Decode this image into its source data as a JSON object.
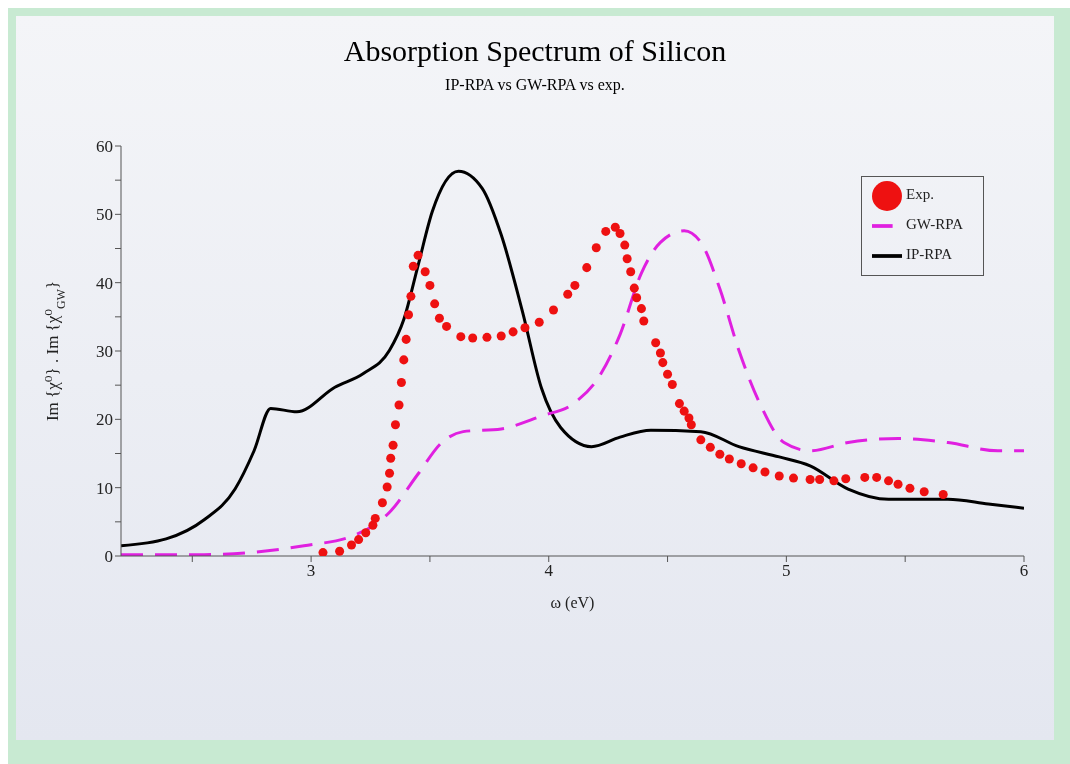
{
  "chart_data": {
    "type": "line",
    "title": "Absorption Spectrum of Silicon",
    "subtitle": "IP-RPA vs GW-RPA vs exp.",
    "xlabel": "ω (eV)",
    "ylabel": "Im {χ⁰}  .  Im {χ⁰$_{GW}$}",
    "xlim": [
      2.2,
      6
    ],
    "xticks": [
      {
        "value": 2.5,
        "label": null
      },
      3,
      {
        "value": 3.5,
        "label": null
      },
      4,
      {
        "value": 4.5,
        "label": null
      },
      5,
      {
        "value": 5.5,
        "label": null
      },
      6
    ],
    "ylim": [
      0,
      60
    ],
    "yticks": [
      0,
      {
        "value": 5,
        "label": null
      },
      10,
      {
        "value": 15,
        "label": null
      },
      20,
      {
        "value": 25,
        "label": null
      },
      30,
      {
        "value": 35,
        "label": null
      },
      40,
      {
        "value": 45,
        "label": null
      },
      50,
      {
        "value": 55,
        "label": null
      },
      60
    ],
    "grid": false,
    "legend": "top right",
    "series": [
      {
        "name": "Exp.",
        "type": "scatter",
        "marker": "circle",
        "color": "#ee1111",
        "x": [
          3.05,
          3.12,
          3.17,
          3.2,
          3.23,
          3.26,
          3.27,
          3.3,
          3.32,
          3.33,
          3.335,
          3.345,
          3.355,
          3.37,
          3.38,
          3.39,
          3.4,
          3.41,
          3.42,
          3.43,
          3.45,
          3.48,
          3.5,
          3.52,
          3.54,
          3.57,
          3.63,
          3.68,
          3.74,
          3.8,
          3.85,
          3.9,
          3.96,
          4.02,
          4.08,
          4.11,
          4.16,
          4.2,
          4.24,
          4.28,
          4.3,
          4.32,
          4.33,
          4.345,
          4.36,
          4.37,
          4.39,
          4.4,
          4.45,
          4.47,
          4.48,
          4.5,
          4.52,
          4.55,
          4.57,
          4.59,
          4.6,
          4.64,
          4.68,
          4.72,
          4.76,
          4.81,
          4.86,
          4.91,
          4.97,
          5.03,
          5.1,
          5.14,
          5.2,
          5.25,
          5.33,
          5.38,
          5.43,
          5.47,
          5.52,
          5.58,
          5.66
        ],
        "values": [
          0.5,
          0.7,
          1.6,
          2.4,
          3.4,
          4.5,
          5.5,
          7.8,
          10.1,
          12.1,
          14.3,
          16.2,
          19.2,
          22.1,
          25.4,
          28.7,
          31.7,
          35.3,
          38,
          42.4,
          44,
          41.6,
          39.6,
          36.9,
          34.8,
          33.6,
          32.1,
          31.9,
          32,
          32.2,
          32.8,
          33.4,
          34.2,
          36,
          38.3,
          39.6,
          42.2,
          45.1,
          47.5,
          48.1,
          47.2,
          45.5,
          43.5,
          41.6,
          39.2,
          37.8,
          36.2,
          34.4,
          31.2,
          29.7,
          28.3,
          26.6,
          25.1,
          22.3,
          21.2,
          20.2,
          19.2,
          17,
          15.9,
          14.9,
          14.2,
          13.5,
          12.9,
          12.3,
          11.7,
          11.4,
          11.2,
          11.2,
          11,
          11.3,
          11.5,
          11.5,
          11,
          10.5,
          9.9,
          9.4,
          9
        ]
      },
      {
        "name": "IP-RPA",
        "line_style": "solid",
        "color": "#000000",
        "x": [
          2.2,
          2.39,
          2.55,
          2.68,
          2.76,
          2.83,
          2.94,
          3.1,
          3.22,
          3.33,
          3.39,
          3.45,
          3.51,
          3.62,
          3.72,
          3.8,
          3.89,
          3.97,
          4.05,
          4.18,
          4.3,
          4.43,
          4.64,
          4.8,
          4.97,
          5.1,
          5.26,
          5.43,
          5.68,
          5.85,
          6
        ],
        "values": [
          1.5,
          2.5,
          5.3,
          9.8,
          15.4,
          21.6,
          21.1,
          24.7,
          26.7,
          30.1,
          34.6,
          42.5,
          50.4,
          56.3,
          53.8,
          47,
          35.7,
          24.5,
          18.8,
          16,
          17.4,
          18.4,
          18.2,
          16,
          14.5,
          13.2,
          9.8,
          8.3,
          8.3,
          7.6,
          7
        ]
      },
      {
        "name": "GW-RPA",
        "line_style": "dashed",
        "color": "#e020e0",
        "x": [
          2.2,
          2.55,
          2.97,
          3.18,
          3.33,
          3.45,
          3.55,
          3.64,
          3.8,
          3.97,
          4.1,
          4.22,
          4.3,
          4.39,
          4.47,
          4.57,
          4.64,
          4.72,
          4.8,
          4.89,
          4.99,
          5.1,
          5.26,
          5.47,
          5.68,
          5.89,
          6
        ],
        "values": [
          0.2,
          0.2,
          1.5,
          3,
          6.4,
          12,
          16.6,
          18.2,
          18.6,
          20.5,
          22.2,
          26.7,
          32.4,
          41.4,
          45.9,
          47.6,
          45.9,
          39.1,
          30.1,
          22.2,
          16.6,
          15.4,
          16.6,
          17.2,
          16.6,
          15.4,
          15.4
        ]
      }
    ]
  }
}
